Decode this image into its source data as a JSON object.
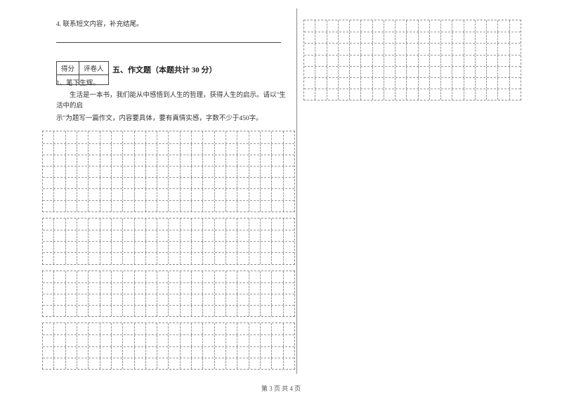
{
  "question4": {
    "number": "4.",
    "text": "联系短文内容，补充结尾。"
  },
  "score_headers": {
    "col1": "得分",
    "col2": "评卷人"
  },
  "section_title": "五、作文题（本题共计 30 分）",
  "essay_prompt": {
    "num": "1、",
    "title": "笔下生辉。",
    "body1": "生活是一本书，我们能从中感悟到人生的哲理，获得人生的启示。请以\"生活中的启",
    "body2": "示\"为题写一篇作文，内容要具体，要有真情实感，字数不少于450字。"
  },
  "footer": "第 3 页 共 4 页",
  "grid_specs": {
    "right_top": {
      "cols": 19,
      "rows": 7,
      "cell_w": 16.3
    },
    "left_blocks": [
      {
        "rows": 7
      },
      {
        "rows": 4
      },
      {
        "rows": 4
      },
      {
        "rows": 4
      }
    ],
    "left_cols": 22
  },
  "colors": {
    "dash": "#999",
    "border": "#888"
  }
}
